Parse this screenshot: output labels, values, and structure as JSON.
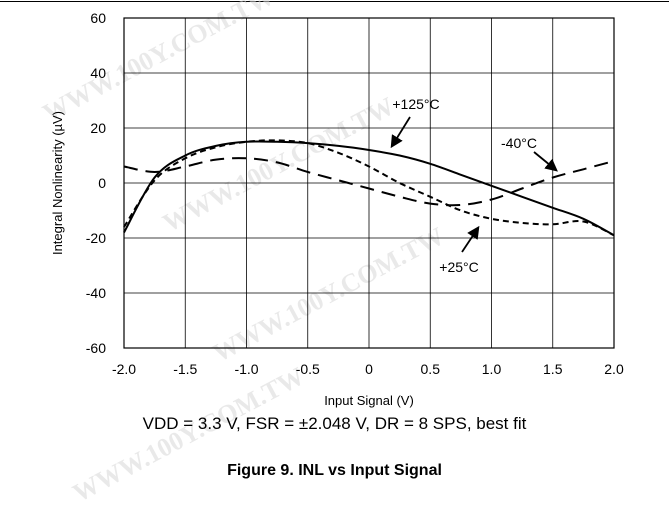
{
  "chart_data": {
    "type": "line",
    "title": "",
    "xlabel": "Input Signal (V)",
    "ylabel": "Integral Nonlinearity (µV)",
    "xlim": [
      -2.0,
      2.0
    ],
    "ylim": [
      -60,
      60
    ],
    "x_tick_labels": [
      "-2.0",
      "-1.5",
      "-1.0",
      "-0.5",
      "0",
      "0.5",
      "1.0",
      "1.5",
      "2.0"
    ],
    "y_tick_labels": [
      "60",
      "40",
      "20",
      "0",
      "-20",
      "-40",
      "-60"
    ],
    "grid": true,
    "x": [
      -2.0,
      -1.75,
      -1.5,
      -1.25,
      -1.0,
      -0.75,
      -0.5,
      -0.25,
      0.0,
      0.25,
      0.5,
      0.75,
      1.0,
      1.25,
      1.5,
      1.75,
      2.0
    ],
    "series": [
      {
        "name": "+125°C",
        "style": "solid",
        "values": [
          -18,
          2,
          10,
          13.5,
          15,
          15,
          14.5,
          13.5,
          12,
          10,
          7,
          3,
          -1,
          -5,
          -9,
          -13,
          -19
        ]
      },
      {
        "name": "+25°C",
        "style": "short-dash",
        "values": [
          -16,
          1,
          9,
          13,
          15,
          15.5,
          14.5,
          11,
          6,
          0,
          -5,
          -10,
          -13,
          -14.5,
          -15,
          -14,
          -19
        ]
      },
      {
        "name": "-40°C",
        "style": "long-dash",
        "values": [
          6,
          4,
          6,
          8.5,
          9,
          7.5,
          4,
          1,
          -2,
          -5,
          -7.5,
          -8,
          -6,
          -2,
          2,
          5,
          8
        ]
      }
    ],
    "annotations": [
      {
        "text": "+125°C",
        "series": "+125°C"
      },
      {
        "text": "-40°C",
        "series": "-40°C"
      },
      {
        "text": "+25°C",
        "series": "+25°C"
      }
    ],
    "colors": {
      "line": "#000000",
      "grid": "#000000",
      "background": "#ffffff"
    }
  },
  "conditions": "VDD = 3.3 V, FSR = ±2.048 V, DR = 8 SPS, best fit",
  "caption": "Figure 9. INL vs Input Signal",
  "watermark": "WWW.100Y.COM.TW"
}
